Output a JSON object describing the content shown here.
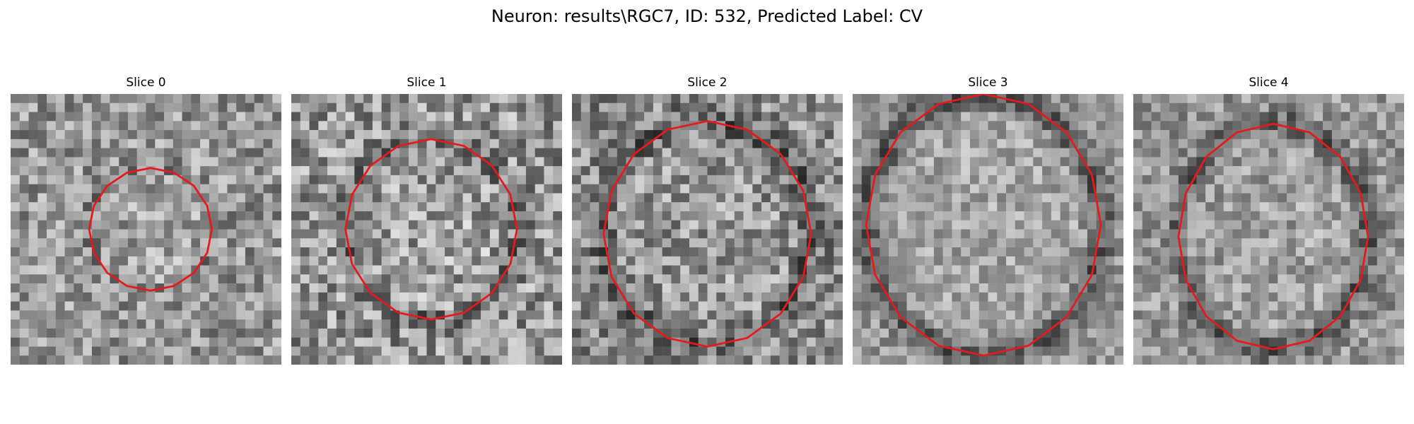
{
  "figure": {
    "title": "Neuron: results\\RGC7, ID: 532, Predicted Label: CV"
  },
  "panels": [
    {
      "title": "Slice 0"
    },
    {
      "title": "Slice 1"
    },
    {
      "title": "Slice 2"
    },
    {
      "title": "Slice 3"
    },
    {
      "title": "Slice 4"
    }
  ],
  "colors": {
    "contour": "#e41a1c",
    "background": "#ffffff"
  }
}
